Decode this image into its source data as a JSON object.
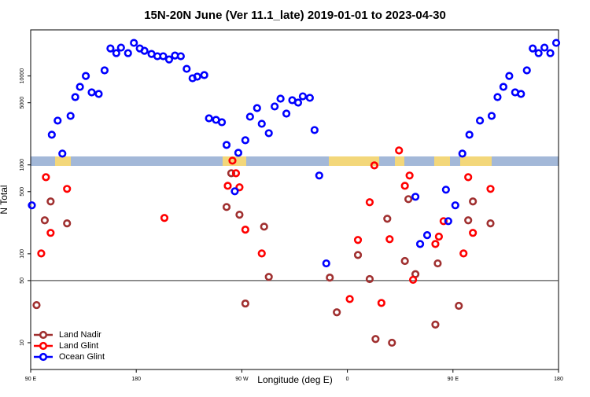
{
  "chart_data": {
    "type": "scatter",
    "title": "15N-20N June (Ver 11.1_late)   2019-01-01 to 2023-04-30",
    "xlabel": "Longitude (deg E)",
    "ylabel": "N Total",
    "xlim": [
      90,
      540
    ],
    "ylim": [
      5,
      33000
    ],
    "log_y": true,
    "legend": "bottom-left",
    "hline": 50,
    "xticks": [
      {
        "value": 90,
        "label": "90 E"
      },
      180,
      {
        "value": 270,
        "label": "90 W"
      },
      {
        "value": 360,
        "label": "0"
      },
      {
        "value": 450,
        "label": "90 E"
      },
      {
        "value": 540,
        "label": "180"
      }
    ],
    "yticks": [
      10,
      50,
      100,
      500,
      1000,
      5000,
      10000
    ],
    "series": [
      {
        "name": "Land Nadir",
        "color": "#a03030",
        "x": [
          95,
          102,
          107,
          121,
          257,
          261,
          268,
          273,
          289,
          293,
          345,
          351,
          369,
          379,
          384,
          394,
          398,
          409,
          412,
          418,
          437,
          435,
          455,
          463,
          467,
          482
        ],
        "values": [
          26.5,
          238,
          388,
          220,
          336,
          806,
          275,
          27.6,
          202,
          55,
          54,
          22,
          97,
          52,
          11,
          248,
          10,
          83,
          412,
          59,
          78,
          16,
          26,
          238,
          388,
          220
        ]
      },
      {
        "name": "Land Glint",
        "color": "#ff0000",
        "x": [
          103,
          99,
          107,
          121,
          204,
          258,
          262,
          265,
          268,
          273,
          287,
          362,
          369,
          379,
          383,
          389,
          396,
          404,
          409,
          413,
          416,
          435,
          438,
          442,
          459,
          463,
          467,
          482
        ],
        "values": [
          728,
          101,
          172,
          537,
          253,
          582,
          1117,
          806,
          560,
          187,
          101,
          31,
          143,
          380,
          988,
          28,
          146,
          1453,
          582,
          759,
          51,
          129,
          156,
          233,
          101,
          728,
          172,
          537
        ]
      },
      {
        "name": "Ocean Glint",
        "color": "#0000ff",
        "x": [
          91,
          108,
          113,
          117,
          124,
          128,
          132,
          137,
          142,
          148,
          153,
          158,
          163,
          167,
          173,
          178,
          183,
          187,
          193,
          198,
          203,
          208,
          213,
          218,
          223,
          228,
          232,
          238,
          242,
          248,
          253,
          257,
          264,
          267,
          273,
          277,
          283,
          287,
          293,
          298,
          303,
          308,
          313,
          318,
          322,
          328,
          332,
          336,
          342,
          418,
          422,
          428,
          446,
          444,
          452,
          458,
          464,
          473,
          483,
          488,
          493,
          498,
          503,
          508,
          513,
          518,
          523,
          528,
          533,
          538
        ],
        "values": [
          351,
          2183,
          3148,
          1340,
          3556,
          5790,
          7540,
          10000,
          6540,
          6280,
          11560,
          20400,
          18070,
          20840,
          18070,
          23550,
          20400,
          19190,
          17700,
          16670,
          16670,
          15350,
          16990,
          16670,
          12030,
          9420,
          9820,
          10230,
          3343,
          3210,
          3020,
          1675,
          505,
          1368,
          1893,
          3483,
          4355,
          2900,
          2273,
          4540,
          5560,
          3776,
          5340,
          5020,
          5900,
          5680,
          2465,
          759,
          78,
          438,
          129,
          162,
          233,
          526,
          351,
          1340,
          2183,
          3148,
          3556,
          5790,
          7540,
          10000,
          6540,
          6280,
          11560,
          20400,
          18070,
          20840,
          18070,
          23550
        ]
      }
    ]
  }
}
